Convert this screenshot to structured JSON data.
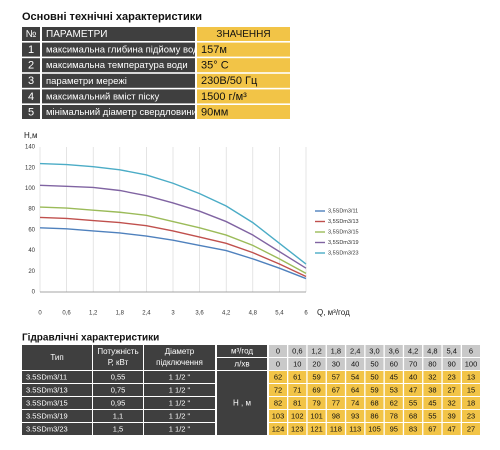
{
  "header": {
    "title": "Основні технічні характеристики"
  },
  "spec_table": {
    "columns": [
      "№",
      "ПАРАМЕТРИ",
      "ЗНАЧЕННЯ"
    ],
    "rows": [
      [
        "1",
        "максимальна глибина підйому води",
        "157м"
      ],
      [
        "2",
        "максимальна температура води",
        "35° С"
      ],
      [
        "3",
        "параметри мережі",
        "230В/50 Гц"
      ],
      [
        "4",
        "максимальний вміст піску",
        "1500 г/м³"
      ],
      [
        "5",
        "мінімальний діаметр свердловини",
        "90мм"
      ]
    ]
  },
  "chart_data": {
    "type": "line",
    "y_label": "Н,м",
    "x_label": "Q, м³/год",
    "x": [
      0,
      0.6,
      1.2,
      1.8,
      2.4,
      3,
      3.6,
      4.2,
      4.8,
      5.4,
      6
    ],
    "xlim": [
      0,
      6
    ],
    "xticks": [
      0,
      {
        "value": 0.6,
        "label": "0,6"
      },
      {
        "value": 1.2,
        "label": "1,2"
      },
      {
        "value": 1.8,
        "label": "1,8"
      },
      {
        "value": 2.4,
        "label": "2,4"
      },
      3,
      {
        "value": 3.6,
        "label": "3,6"
      },
      {
        "value": 4.2,
        "label": "4,2"
      },
      {
        "value": 4.8,
        "label": "4,8"
      },
      {
        "value": 5.4,
        "label": "5,4"
      },
      6
    ],
    "ylim": [
      0,
      140
    ],
    "yticks": [
      0,
      20,
      40,
      60,
      80,
      100,
      120,
      140
    ],
    "grid": true,
    "legend": "right",
    "series": [
      {
        "name": "3,5SDm3/11",
        "color": "#4f81bd",
        "values": [
          62,
          61,
          59,
          57,
          54,
          50,
          45,
          40,
          32,
          23,
          13
        ]
      },
      {
        "name": "3,5SDm3/13",
        "color": "#c0504d",
        "values": [
          72,
          71,
          69,
          67,
          64,
          59,
          53,
          47,
          38,
          27,
          15
        ]
      },
      {
        "name": "3,5SDm3/15",
        "color": "#9bbb59",
        "values": [
          82,
          81,
          79,
          77,
          74,
          68,
          62,
          55,
          45,
          32,
          18
        ]
      },
      {
        "name": "3,5SDm3/19",
        "color": "#8064a2",
        "values": [
          103,
          102,
          101,
          98,
          93,
          86,
          78,
          68,
          55,
          39,
          23
        ]
      },
      {
        "name": "3,5SDm3/23",
        "color": "#4bacc6",
        "values": [
          124,
          123,
          121,
          118,
          113,
          105,
          95,
          83,
          67,
          47,
          27
        ]
      }
    ]
  },
  "hydraulic": {
    "title": "Гідравлічні характеристики",
    "type_header": "Тип",
    "power_header": [
      "Потужність",
      "Р, кВт"
    ],
    "diameter_header": [
      "Діаметр",
      "підключення"
    ],
    "flow_m3_header": "м³/год",
    "flow_l_header": "л/хв",
    "head_header": "Н , м",
    "flow_m3": [
      "0",
      "0,6",
      "1,2",
      "1,8",
      "2,4",
      "3,0",
      "3,6",
      "4,2",
      "4,8",
      "5,4",
      "6"
    ],
    "flow_l": [
      0,
      10,
      20,
      30,
      40,
      50,
      60,
      70,
      80,
      90,
      100
    ],
    "rows": [
      {
        "type": "3.5SDm3/11",
        "power": "0,55",
        "diameter": "1 1/2 \"",
        "head": [
          62,
          61,
          59,
          57,
          54,
          50,
          45,
          40,
          32,
          23,
          13
        ]
      },
      {
        "type": "3.5SDm3/13",
        "power": "0,75",
        "diameter": "1 1/2 \"",
        "head": [
          72,
          71,
          69,
          67,
          64,
          59,
          53,
          47,
          38,
          27,
          15
        ]
      },
      {
        "type": "3.5SDm3/15",
        "power": "0,95",
        "diameter": "1 1/2 \"",
        "head": [
          82,
          81,
          79,
          77,
          74,
          68,
          62,
          55,
          45,
          32,
          18
        ]
      },
      {
        "type": "3.5SDm3/19",
        "power": "1,1",
        "diameter": "1 1/2 \"",
        "head": [
          103,
          102,
          101,
          98,
          93,
          86,
          78,
          68,
          55,
          39,
          23
        ]
      },
      {
        "type": "3.5SDm3/23",
        "power": "1,5",
        "diameter": "1 1/2 \"",
        "head": [
          124,
          123,
          121,
          118,
          113,
          105,
          95,
          83,
          67,
          47,
          27
        ]
      }
    ]
  }
}
